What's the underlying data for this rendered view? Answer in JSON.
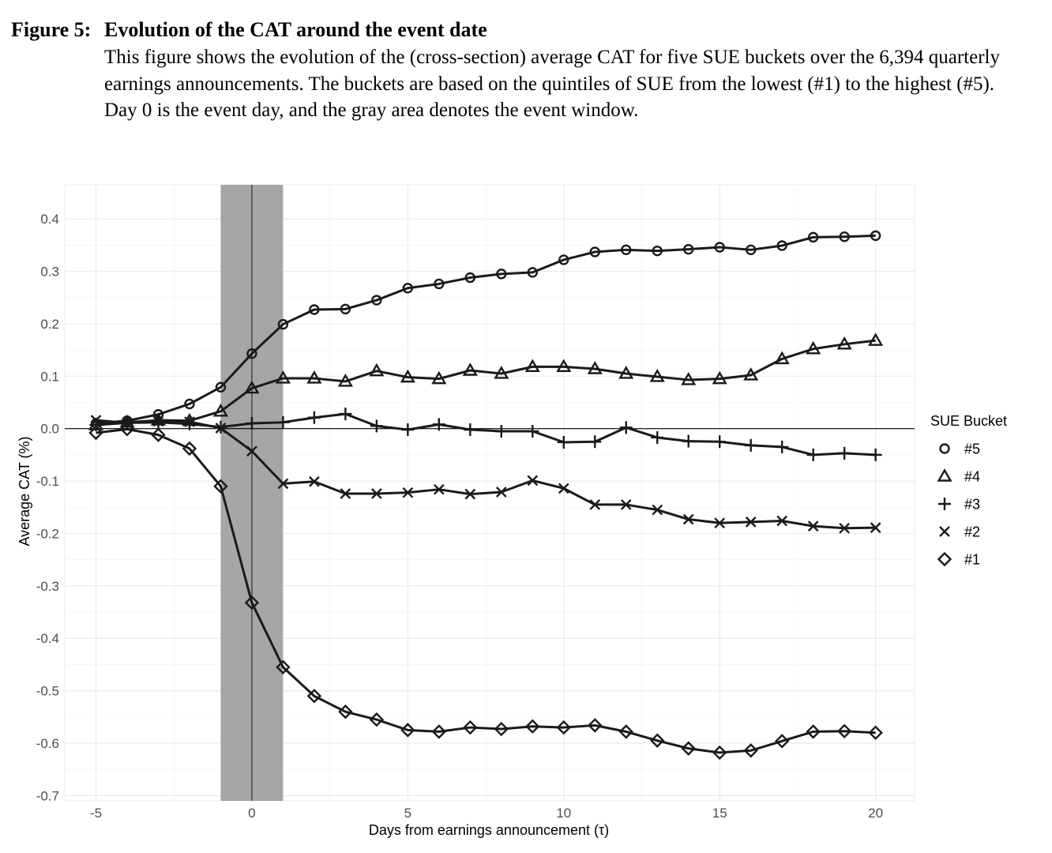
{
  "figure": {
    "label": "Figure 5:",
    "title": "Evolution of the CAT around the event date",
    "description": "This figure shows the evolution of the (cross-section) average CAT for five SUE buckets over the 6,394 quarterly earnings announcements. The buckets are based on the quintiles of SUE from the lowest (#1) to the highest (#5). Day 0 is the event day, and the gray area denotes the event window."
  },
  "chart_data": {
    "type": "line",
    "xlabel": "Days from earnings announcement (τ)",
    "ylabel": "Average CAT (%)",
    "xlim": [
      -6,
      21.25
    ],
    "ylim": [
      -0.71,
      0.465
    ],
    "xticks": [
      -5,
      0,
      5,
      10,
      15,
      20
    ],
    "yticks": [
      -0.7,
      -0.6,
      -0.5,
      -0.4,
      -0.3,
      -0.2,
      -0.1,
      0.0,
      0.1,
      0.2,
      0.3,
      0.4
    ],
    "yticklabels": [
      "-0.7",
      "-0.6",
      "-0.5",
      "-0.4",
      "-0.3",
      "-0.2",
      "-0.1",
      "0.0",
      "0.1",
      "0.2",
      "0.3",
      "0.4"
    ],
    "grid": true,
    "event_window": [
      -1,
      1
    ],
    "reference_lines": {
      "x": 0,
      "y": 0
    },
    "legend": {
      "title": "SUE Bucket",
      "position": "right"
    },
    "colors": {
      "line": "#1a1a1a",
      "window": "#a6a6a6",
      "grid": "#ebebeb"
    },
    "x": [
      -5,
      -4,
      -3,
      -2,
      -1,
      0,
      1,
      2,
      3,
      4,
      5,
      6,
      7,
      8,
      9,
      10,
      11,
      12,
      13,
      14,
      15,
      16,
      17,
      18,
      19,
      20
    ],
    "series": [
      {
        "name": "#5",
        "marker": "circle",
        "values": [
          0.01,
          0.015,
          0.027,
          0.047,
          0.079,
          0.143,
          0.199,
          0.227,
          0.228,
          0.245,
          0.268,
          0.276,
          0.288,
          0.295,
          0.298,
          0.322,
          0.337,
          0.341,
          0.339,
          0.342,
          0.346,
          0.341,
          0.349,
          0.365,
          0.366,
          0.368
        ]
      },
      {
        "name": "#4",
        "marker": "triangle",
        "values": [
          0.007,
          0.012,
          0.016,
          0.015,
          0.033,
          0.077,
          0.096,
          0.096,
          0.09,
          0.11,
          0.098,
          0.095,
          0.111,
          0.105,
          0.118,
          0.118,
          0.114,
          0.105,
          0.099,
          0.093,
          0.095,
          0.102,
          0.133,
          0.152,
          0.161,
          0.168
        ]
      },
      {
        "name": "#3",
        "marker": "plus",
        "values": [
          0.007,
          0.011,
          0.012,
          0.009,
          0.003,
          0.01,
          0.012,
          0.021,
          0.028,
          0.005,
          -0.002,
          0.008,
          -0.002,
          -0.005,
          -0.005,
          -0.026,
          -0.025,
          0.002,
          -0.017,
          -0.024,
          -0.025,
          -0.032,
          -0.035,
          -0.05,
          -0.047,
          -0.05
        ]
      },
      {
        "name": "#2",
        "marker": "x",
        "values": [
          0.016,
          0.011,
          0.014,
          0.013,
          0.001,
          -0.043,
          -0.105,
          -0.101,
          -0.124,
          -0.124,
          -0.122,
          -0.116,
          -0.125,
          -0.121,
          -0.099,
          -0.114,
          -0.145,
          -0.145,
          -0.155,
          -0.173,
          -0.18,
          -0.178,
          -0.176,
          -0.186,
          -0.19,
          -0.189
        ]
      },
      {
        "name": "#1",
        "marker": "diamond",
        "values": [
          -0.008,
          -0.001,
          -0.012,
          -0.038,
          -0.11,
          -0.332,
          -0.455,
          -0.51,
          -0.54,
          -0.555,
          -0.575,
          -0.578,
          -0.57,
          -0.573,
          -0.568,
          -0.57,
          -0.566,
          -0.578,
          -0.595,
          -0.61,
          -0.618,
          -0.614,
          -0.596,
          -0.578,
          -0.577,
          -0.58
        ]
      }
    ]
  }
}
